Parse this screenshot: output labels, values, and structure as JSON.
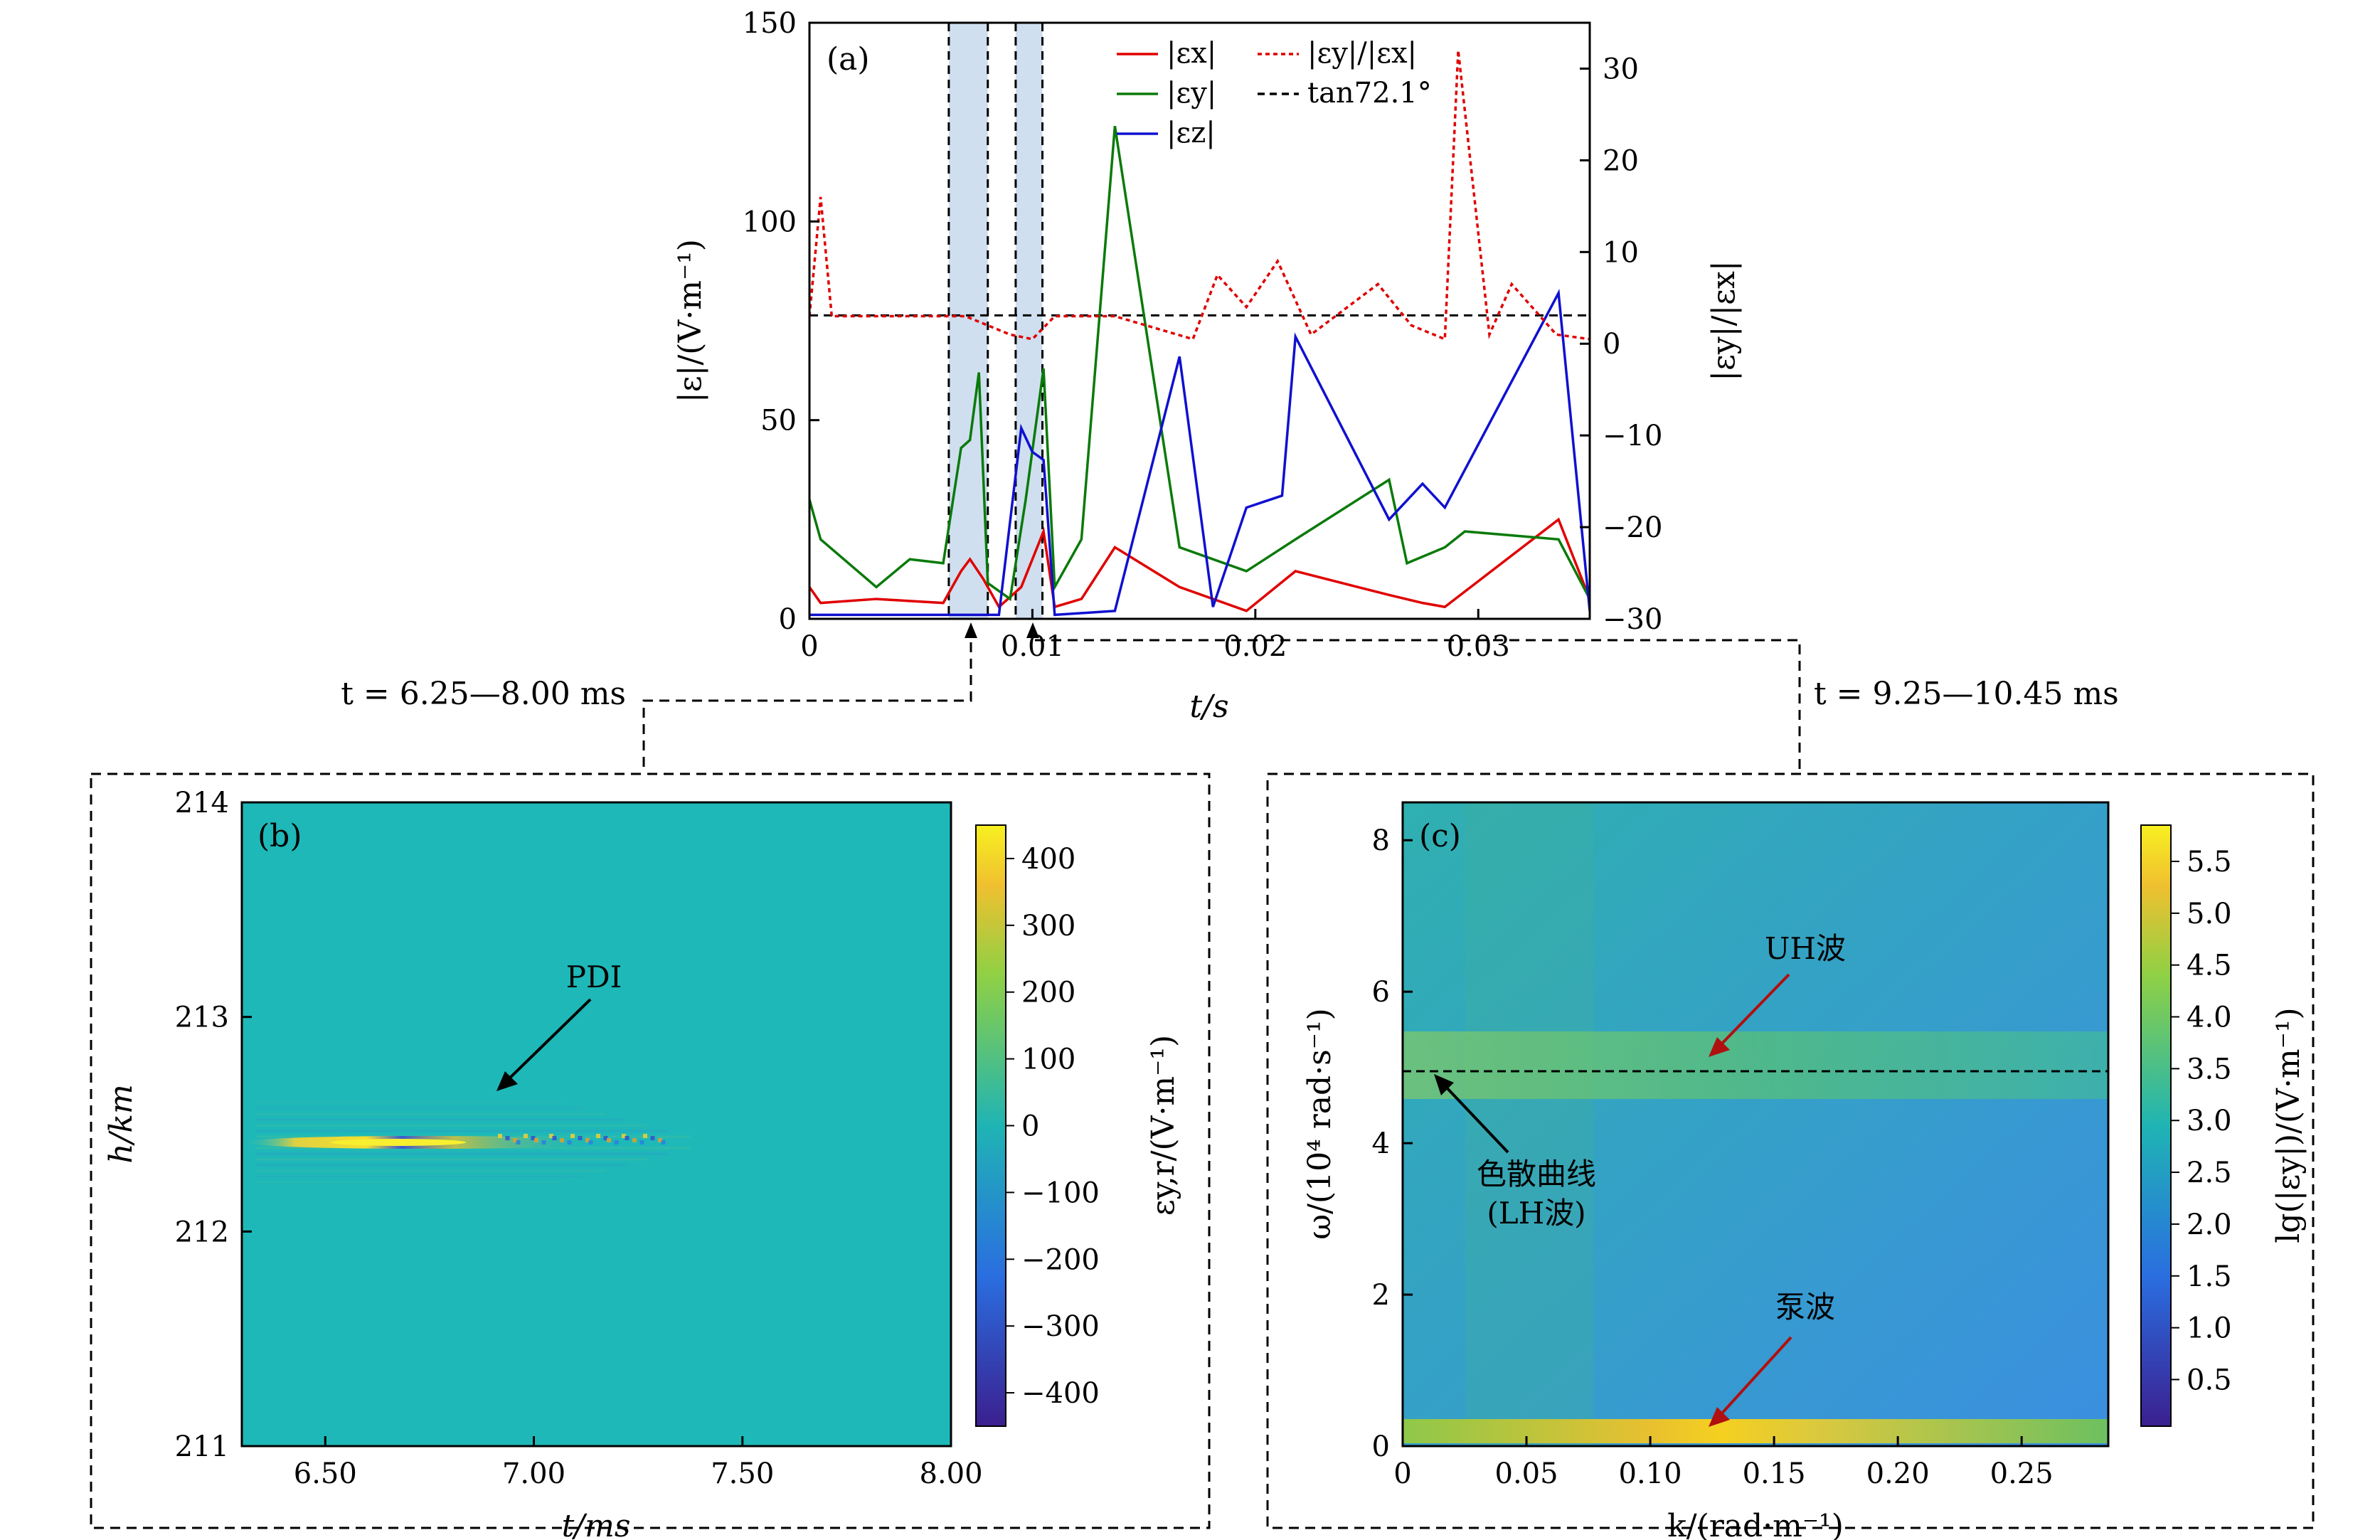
{
  "chart_data": [
    {
      "panel": "(a)",
      "type": "line",
      "xlabel": "t/s",
      "ylabel": "|ε|/(V·m⁻¹)",
      "y2label": "|εy|/|εx|",
      "xlim": [
        0,
        0.035
      ],
      "ylim": [
        0,
        150
      ],
      "y2lim": [
        -30,
        35
      ],
      "xticks": [
        "0",
        "0.01",
        "0.02",
        "0.03"
      ],
      "yticks": [
        "0",
        "50",
        "100",
        "150"
      ],
      "y2ticks": [
        "−30",
        "−20",
        "−10",
        "0",
        "10",
        "20",
        "30"
      ],
      "legend": [
        "|εx|",
        "|εy|",
        "|εz|",
        "|εy|/|εx|",
        "tan72.1°"
      ],
      "hline_tan": 3.09,
      "shaded_windows": [
        [
          0.00625,
          0.008
        ],
        [
          0.00925,
          0.01045
        ]
      ],
      "window_labels": [
        "t = 6.25—8.00 ms",
        "t = 9.25—10.45 ms"
      ],
      "series": [
        {
          "name": "|εx|",
          "color": "#e00000",
          "x": [
            0,
            0.0005,
            0.003,
            0.006,
            0.0068,
            0.0072,
            0.0078,
            0.0085,
            0.0095,
            0.0105,
            0.011,
            0.0122,
            0.0137,
            0.0166,
            0.0196,
            0.0218,
            0.026,
            0.0275,
            0.0285,
            0.0336,
            0.035
          ],
          "values": [
            8,
            4,
            5,
            4,
            12,
            15,
            10,
            3,
            8,
            22,
            3,
            5,
            18,
            8,
            2,
            12,
            6,
            4,
            3,
            25,
            5
          ]
        },
        {
          "name": "|εy|",
          "color": "#0a7a0a",
          "x": [
            0,
            0.0005,
            0.003,
            0.0045,
            0.006,
            0.0068,
            0.0072,
            0.0076,
            0.008,
            0.009,
            0.0097,
            0.0105,
            0.011,
            0.0122,
            0.0137,
            0.0166,
            0.0196,
            0.0218,
            0.026,
            0.0268,
            0.0285,
            0.0294,
            0.0336,
            0.035
          ],
          "values": [
            30,
            20,
            8,
            15,
            14,
            43,
            45,
            62,
            9,
            5,
            30,
            63,
            8,
            20,
            124,
            18,
            12,
            20,
            35,
            14,
            18,
            22,
            20,
            5
          ]
        },
        {
          "name": "|εz|",
          "color": "#1010d0",
          "x": [
            0,
            0.006,
            0.0085,
            0.0095,
            0.01,
            0.0105,
            0.011,
            0.0137,
            0.0166,
            0.0181,
            0.0196,
            0.0212,
            0.0218,
            0.026,
            0.0275,
            0.0285,
            0.0336,
            0.035
          ],
          "values": [
            1,
            1,
            1,
            48,
            42,
            40,
            1,
            2,
            66,
            3,
            28,
            31,
            71,
            25,
            34,
            28,
            82,
            2
          ]
        },
        {
          "name": "|εy|/|εx|",
          "color": "#e00000",
          "x": [
            0,
            0.0005,
            0.001,
            0.003,
            0.007,
            0.009,
            0.01,
            0.011,
            0.0137,
            0.0172,
            0.0183,
            0.0196,
            0.021,
            0.0225,
            0.0255,
            0.027,
            0.0285,
            0.0291,
            0.0305,
            0.0315,
            0.0335,
            0.035
          ],
          "values": [
            3,
            16,
            3,
            3,
            3,
            1,
            0.5,
            3,
            3,
            0.5,
            7.5,
            4,
            9,
            1,
            6.5,
            2,
            0.5,
            32,
            1,
            6.5,
            1,
            0.5
          ]
        }
      ]
    },
    {
      "panel": "(b)",
      "type": "heatmap",
      "xlabel": "t/ms",
      "ylabel": "h/km",
      "colorbar_label": "εy,r/(V·m⁻¹)",
      "xlim": [
        6.3,
        8.0
      ],
      "ylim": [
        211,
        214
      ],
      "xticks": [
        "6.50",
        "7.00",
        "7.50",
        "8.00"
      ],
      "yticks": [
        "211",
        "212",
        "213",
        "214"
      ],
      "colorbar_ticks": [
        "400",
        "300",
        "200",
        "100",
        "0",
        "−100",
        "−200",
        "−300",
        "−400"
      ],
      "colorbar_range": [
        -450,
        450
      ],
      "annotation": "PDI"
    },
    {
      "panel": "(c)",
      "type": "heatmap",
      "xlabel": "k/(rad·m⁻¹)",
      "ylabel": "ω/(10⁴ rad·s⁻¹)",
      "colorbar_label": "lg(|εy|)/(V·m⁻¹)",
      "xlim": [
        0,
        0.285
      ],
      "ylim": [
        0,
        8.5
      ],
      "xticks": [
        "0",
        "0.05",
        "0.10",
        "0.15",
        "0.20",
        "0.25"
      ],
      "yticks": [
        "0",
        "2",
        "4",
        "6",
        "8"
      ],
      "colorbar_ticks": [
        "5.5",
        "5.0",
        "4.5",
        "4.0",
        "3.5",
        "3.0",
        "2.5",
        "2.0",
        "1.5",
        "1.0",
        "0.5"
      ],
      "colorbar_range": [
        0.05,
        5.85
      ],
      "dispersion_line_omega": 4.95,
      "annotations": [
        "UH波",
        "色散曲线",
        "(LH波)",
        "泵波"
      ]
    }
  ],
  "colors": {
    "red": "#e00000",
    "green": "#0a7a0a",
    "blue": "#1010d0",
    "shade": "#cfdfef"
  }
}
